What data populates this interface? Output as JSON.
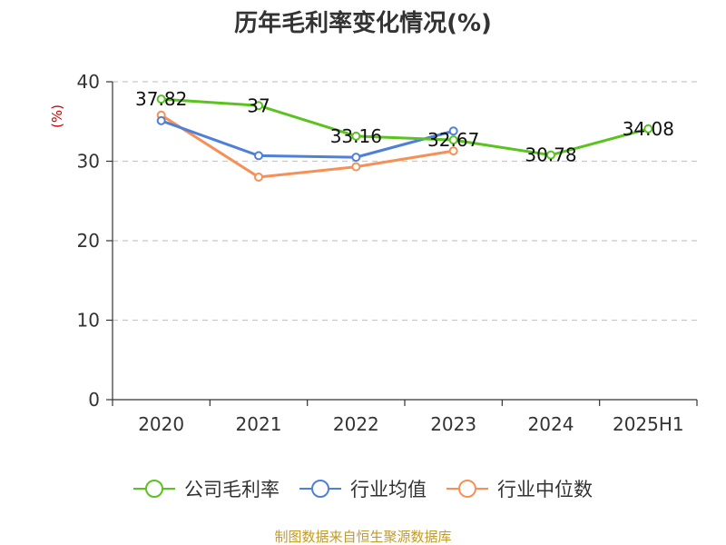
{
  "chart_data": {
    "type": "line",
    "title": "历年毛利率变化情况(%)",
    "ylabel": "(%)",
    "xlabel": "",
    "categories": [
      "2020",
      "2021",
      "2022",
      "2023",
      "2024",
      "2025H1"
    ],
    "ylim": [
      0,
      40
    ],
    "yticks": [
      0,
      10,
      20,
      30,
      40
    ],
    "grid": "horizontal dashed",
    "legend_position": "bottom",
    "series": [
      {
        "name": "公司毛利率",
        "color": "#5ac31f",
        "values": [
          37.82,
          37,
          33.16,
          32.67,
          30.78,
          34.08
        ],
        "labels": [
          "37.82",
          "37",
          "33.16",
          "32.67",
          "30.78",
          "34.08"
        ]
      },
      {
        "name": "行业均值",
        "color": "#4f7fd8",
        "values": [
          35.1,
          30.7,
          30.5,
          33.8,
          null,
          null
        ],
        "labels": []
      },
      {
        "name": "行业中位数",
        "color": "#f59056",
        "values": [
          35.8,
          28.0,
          29.3,
          31.3,
          null,
          null
        ],
        "labels": []
      }
    ]
  },
  "footer": {
    "source": "制图数据来自恒生聚源数据库"
  }
}
